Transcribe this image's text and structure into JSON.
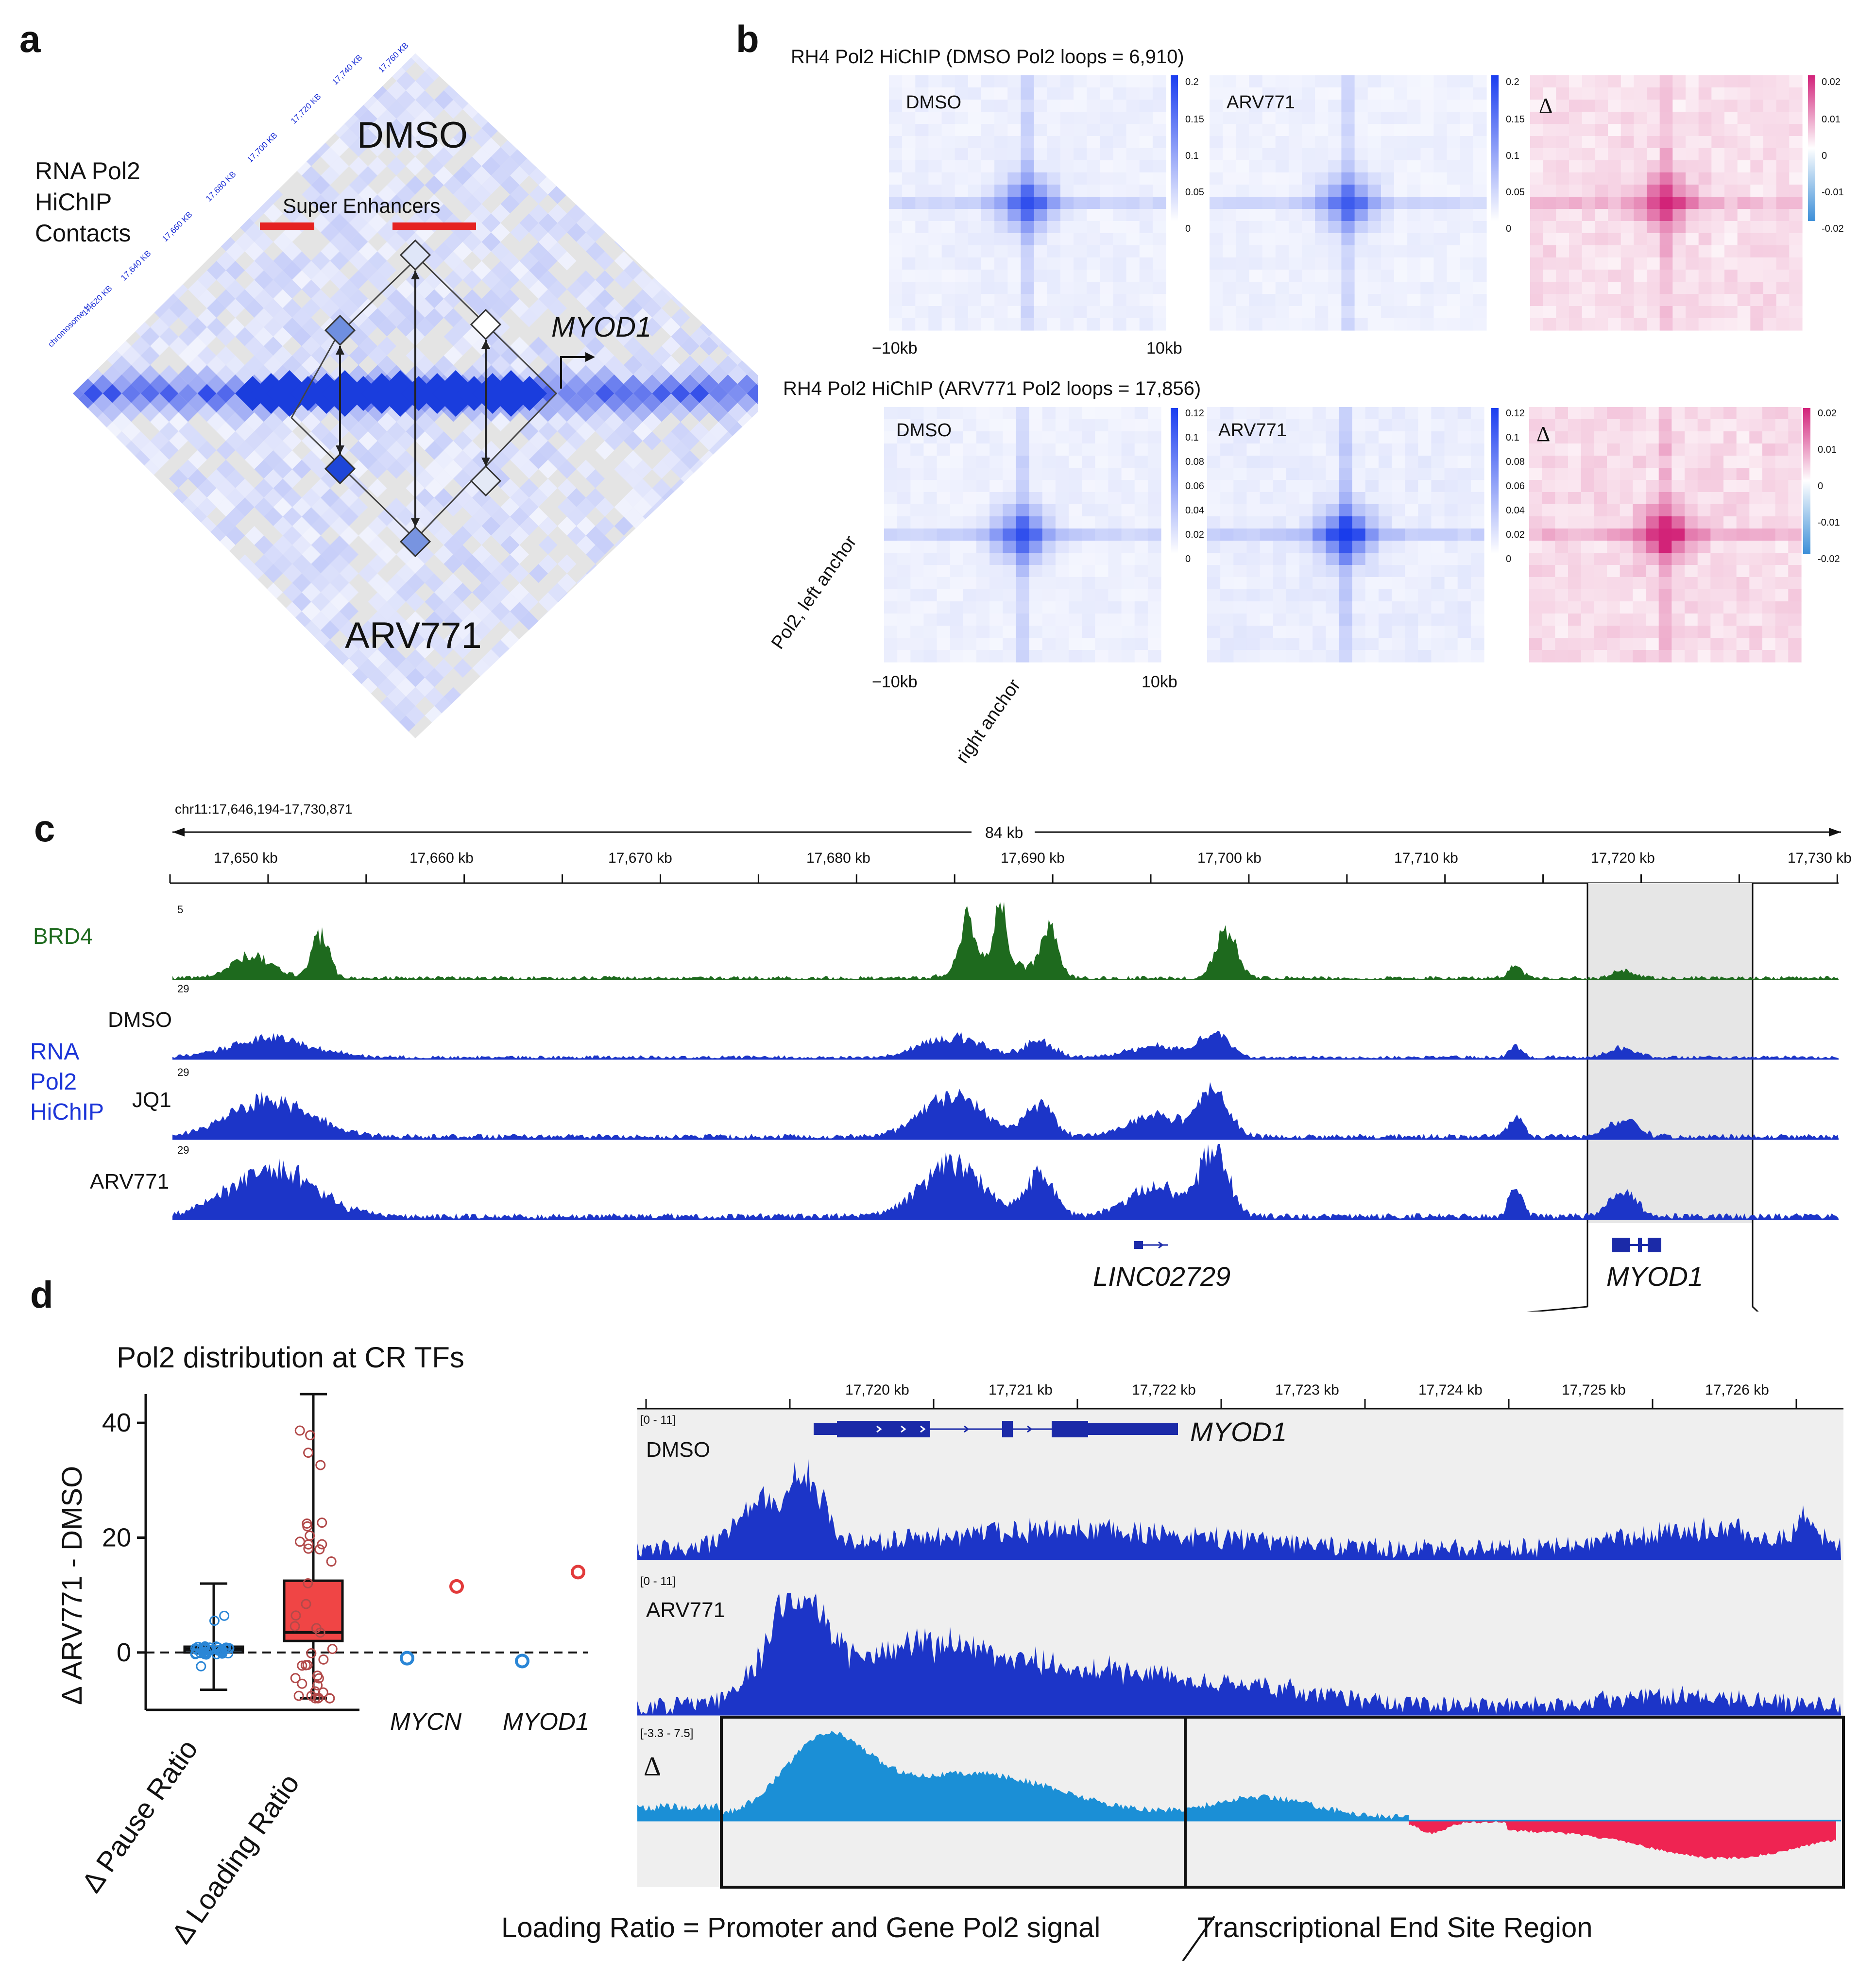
{
  "panel_a": {
    "letter": "a",
    "side_label": [
      "RNA Pol2",
      "HiChIP",
      "Contacts"
    ],
    "top_condition": "DMSO",
    "bottom_condition": "ARV771",
    "super_enhancers": "Super Enhancers",
    "gene": "MYOD1",
    "coord_ticks": [
      "chromosome 11",
      "17,620 KB",
      "17,640 KB",
      "17,660 KB",
      "17,680 KB",
      "17,700 KB",
      "17,720 KB",
      "17,740 KB",
      "17,760 KB"
    ]
  },
  "panel_b": {
    "letter": "b",
    "row1_title": "RH4 Pol2 HiChIP (DMSO Pol2 loops = 6,910)",
    "row2_title": "RH4 Pol2 HiChIP (ARV771 Pol2 loops = 17,856)",
    "cond_dmso": "DMSO",
    "cond_arv": "ARV771",
    "delta": "Δ",
    "x_left": "−10kb",
    "x_right": "10kb",
    "y_axis_label": "Pol2, left anchor",
    "x_axis_label": "right anchor",
    "row1_scale_ticks": [
      "0.2",
      "0.15",
      "0.1",
      "0.05",
      "0"
    ],
    "row2_scale_ticks": [
      "0.12",
      "0.1",
      "0.08",
      "0.06",
      "0.04",
      "0.02",
      "0"
    ],
    "delta_scale_ticks": [
      "0.02",
      "0.01",
      "0",
      "-0.01",
      "-0.02"
    ]
  },
  "panel_c": {
    "letter": "c",
    "region": "chr11:17,646,194-17,730,871",
    "span": "84 kb",
    "ticks": [
      "17,650 kb",
      "17,660 kb",
      "17,670 kb",
      "17,680 kb",
      "17,690 kb",
      "17,700 kb",
      "17,710 kb",
      "17,720 kb",
      "17,730 kb"
    ],
    "brd4_label": "BRD4",
    "brd4_scale": "5",
    "pol2_group_label": [
      "RNA",
      "Pol2",
      "HiChIP"
    ],
    "tracks": [
      {
        "name": "DMSO",
        "scale": "29"
      },
      {
        "name": "JQ1",
        "scale": "29"
      },
      {
        "name": "ARV771",
        "scale": "29"
      }
    ],
    "genes": [
      "LINC02729",
      "MYOD1"
    ]
  },
  "panel_d": {
    "letter": "d",
    "title": "Pol2 distribution at CR TFs",
    "ylabel": "Δ ARV771 - DMSO",
    "categories": [
      "Δ Pause Ratio",
      "Δ Loading Ratio"
    ],
    "extra_labels": [
      "MYCN",
      "MYOD1"
    ],
    "zoom_ticks": [
      "17,720 kb",
      "17,721 kb",
      "17,722 kb",
      "17,723 kb",
      "17,724 kb",
      "17,725 kb",
      "17,726 kb"
    ],
    "zoom_tracks": [
      {
        "name": "DMSO",
        "range": "[0 - 11]"
      },
      {
        "name": "ARV771",
        "range": "[0 - 11]"
      },
      {
        "name": "Δ",
        "range": "[-3.3 - 7.5]"
      }
    ],
    "zoom_gene": "MYOD1",
    "footnote_left": "Loading Ratio = Promoter and Gene Pol2 signal",
    "footnote_right": "Transcriptional End Site Region"
  },
  "chart_data": {
    "type": "box",
    "title": "Pol2 distribution at CR TFs",
    "ylabel": "Δ ARV771 - DMSO",
    "ylim": [
      -10,
      45
    ],
    "yticks": [
      0,
      20,
      40
    ],
    "categories": [
      "Δ Pause Ratio",
      "Δ Loading Ratio"
    ],
    "series": [
      {
        "name": "Δ Pause Ratio",
        "min": -6.5,
        "q1": 0,
        "median": 0.5,
        "q3": 1,
        "max": 12
      },
      {
        "name": "Δ Loading Ratio",
        "min": -8,
        "q1": 2,
        "median": 3.5,
        "q3": 12.5,
        "max": 45
      }
    ],
    "highlighted_points": [
      {
        "gene": "MYCN",
        "pause_ratio": -1,
        "loading_ratio": 11.5
      },
      {
        "gene": "MYOD1",
        "pause_ratio": -1.5,
        "loading_ratio": 14
      }
    ],
    "reference_line": 0
  }
}
